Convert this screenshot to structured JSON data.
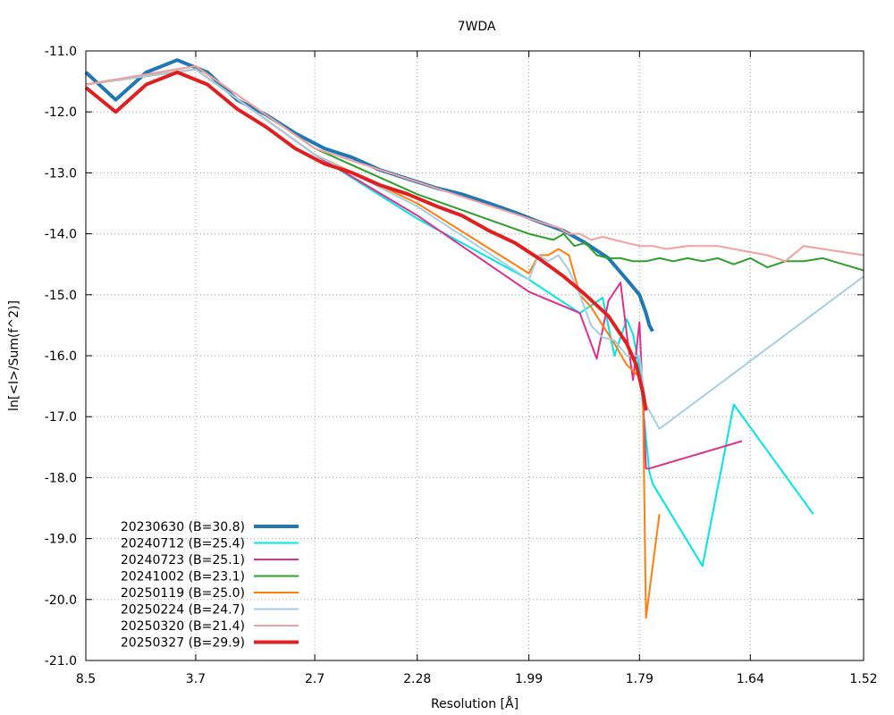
{
  "chart_data": {
    "type": "line",
    "title": "7WDA",
    "xlabel": "Resolution [Å]",
    "ylabel": "ln[<I>/Sum(f^2)]",
    "x_scale": "inverse-square",
    "xlim": [
      8.5,
      1.52
    ],
    "ylim": [
      -21.0,
      -11.0
    ],
    "x_ticks": [
      "8.5",
      "3.7",
      "2.7",
      "2.28",
      "1.99",
      "1.79",
      "1.64",
      "1.52"
    ],
    "y_ticks": [
      "-11.0",
      "-12.0",
      "-13.0",
      "-14.0",
      "-15.0",
      "-16.0",
      "-17.0",
      "-18.0",
      "-19.0",
      "-20.0",
      "-21.0"
    ],
    "grid": true,
    "legend_position": "bottom-left",
    "series": [
      {
        "name": "20230630 (B=30.8)",
        "color": "#1f77b4",
        "width": 4,
        "x": [
          8.5,
          5.78,
          4.64,
          3.98,
          3.55,
          3.24,
          3.0,
          2.81,
          2.65,
          2.52,
          2.41,
          2.31,
          2.22,
          2.15,
          2.08,
          2.02,
          1.97,
          1.92,
          1.88,
          1.84,
          1.81,
          1.79,
          1.78,
          1.775,
          1.77
        ],
        "y": [
          -11.35,
          -11.8,
          -11.35,
          -11.15,
          -11.35,
          -11.8,
          -12.05,
          -12.35,
          -12.6,
          -12.75,
          -12.95,
          -13.1,
          -13.25,
          -13.35,
          -13.5,
          -13.65,
          -13.8,
          -13.95,
          -14.15,
          -14.4,
          -14.75,
          -15.0,
          -15.3,
          -15.5,
          -15.6
        ]
      },
      {
        "name": "20240712 (B=25.4)",
        "color": "#00e5e5",
        "width": 2,
        "x": [
          8.5,
          3.7,
          2.7,
          2.28,
          1.99,
          1.89,
          1.85,
          1.83,
          1.81,
          1.8,
          1.79,
          1.785,
          1.78,
          1.775,
          1.77,
          1.7,
          1.66,
          1.57
        ],
        "y": [
          -11.55,
          -11.3,
          -12.7,
          -13.75,
          -14.75,
          -15.3,
          -15.05,
          -16.0,
          -15.4,
          -15.65,
          -16.2,
          -16.8,
          -17.35,
          -17.9,
          -18.1,
          -19.45,
          -16.8,
          -18.6
        ]
      },
      {
        "name": "20240723 (B=25.1)",
        "color": "#e0308a",
        "width": 2,
        "x": [
          8.5,
          3.7,
          2.7,
          2.28,
          1.99,
          1.89,
          1.86,
          1.84,
          1.82,
          1.81,
          1.8,
          1.79,
          1.78,
          1.775,
          1.65
        ],
        "y": [
          -11.55,
          -11.3,
          -12.7,
          -13.7,
          -14.95,
          -15.3,
          -16.05,
          -15.1,
          -14.8,
          -15.65,
          -16.4,
          -15.45,
          -17.85,
          -17.85,
          -17.4
        ]
      },
      {
        "name": "20241002 (B=23.1)",
        "color": "#2ca02c",
        "width": 2,
        "x": [
          8.5,
          3.7,
          2.7,
          2.28,
          1.99,
          1.94,
          1.92,
          1.9,
          1.88,
          1.86,
          1.84,
          1.82,
          1.8,
          1.78,
          1.76,
          1.74,
          1.72,
          1.7,
          1.68,
          1.66,
          1.64,
          1.62,
          1.6,
          1.58,
          1.56,
          1.54,
          1.52
        ],
        "y": [
          -11.55,
          -11.25,
          -12.6,
          -13.35,
          -14.0,
          -14.1,
          -14.0,
          -14.2,
          -14.15,
          -14.35,
          -14.4,
          -14.4,
          -14.45,
          -14.45,
          -14.4,
          -14.45,
          -14.4,
          -14.45,
          -14.4,
          -14.5,
          -14.4,
          -14.55,
          -14.45,
          -14.45,
          -14.4,
          -14.5,
          -14.6
        ]
      },
      {
        "name": "20250119 (B=25.0)",
        "color": "#ff7f0e",
        "width": 2,
        "x": [
          8.5,
          3.7,
          2.7,
          2.28,
          1.99,
          1.97,
          1.95,
          1.93,
          1.91,
          1.89,
          1.87,
          1.85,
          1.83,
          1.81,
          1.79,
          1.785,
          1.78,
          1.76
        ],
        "y": [
          -11.55,
          -11.3,
          -12.7,
          -13.5,
          -14.65,
          -14.35,
          -14.35,
          -14.25,
          -14.35,
          -15.0,
          -15.2,
          -15.5,
          -15.8,
          -16.15,
          -16.35,
          -16.5,
          -20.3,
          -18.6
        ]
      },
      {
        "name": "20250224 (B=24.7)",
        "color": "#a6cee3",
        "width": 2,
        "x": [
          8.5,
          3.7,
          2.7,
          2.28,
          1.99,
          1.97,
          1.95,
          1.93,
          1.91,
          1.89,
          1.87,
          1.85,
          1.83,
          1.81,
          1.79,
          1.78,
          1.76,
          1.52
        ],
        "y": [
          -11.55,
          -11.3,
          -12.7,
          -13.55,
          -14.75,
          -14.35,
          -14.45,
          -14.35,
          -14.6,
          -15.0,
          -15.5,
          -15.7,
          -15.75,
          -16.0,
          -16.0,
          -16.8,
          -17.2,
          -14.7
        ]
      },
      {
        "name": "20250320 (B=21.4)",
        "color": "#f4a0a0",
        "width": 2,
        "x": [
          8.5,
          3.7,
          2.7,
          2.28,
          1.99,
          1.95,
          1.93,
          1.91,
          1.89,
          1.87,
          1.85,
          1.83,
          1.81,
          1.79,
          1.78,
          1.77,
          1.75,
          1.72,
          1.7,
          1.68,
          1.66,
          1.64,
          1.62,
          1.6,
          1.58,
          1.56,
          1.52
        ],
        "y": [
          -11.55,
          -11.25,
          -12.6,
          -13.15,
          -13.75,
          -13.85,
          -13.9,
          -14.0,
          -14.0,
          -14.1,
          -14.05,
          -14.1,
          -14.15,
          -14.2,
          -14.2,
          -14.2,
          -14.25,
          -14.2,
          -14.2,
          -14.2,
          -14.25,
          -14.3,
          -14.35,
          -14.45,
          -14.2,
          -14.25,
          -14.35
        ]
      },
      {
        "name": "20250327 (B=29.9)",
        "color": "#e02020",
        "width": 4,
        "x": [
          8.5,
          5.78,
          4.64,
          3.98,
          3.55,
          3.24,
          3.0,
          2.81,
          2.65,
          2.52,
          2.41,
          2.31,
          2.22,
          2.15,
          2.08,
          2.02,
          1.97,
          1.92,
          1.88,
          1.84,
          1.81,
          1.795,
          1.785,
          1.78
        ],
        "y": [
          -11.6,
          -12.0,
          -11.55,
          -11.35,
          -11.55,
          -11.95,
          -12.25,
          -12.6,
          -12.85,
          -13.0,
          -13.2,
          -13.35,
          -13.55,
          -13.7,
          -13.95,
          -14.15,
          -14.4,
          -14.7,
          -15.0,
          -15.35,
          -15.8,
          -16.15,
          -16.6,
          -16.9
        ]
      }
    ]
  }
}
